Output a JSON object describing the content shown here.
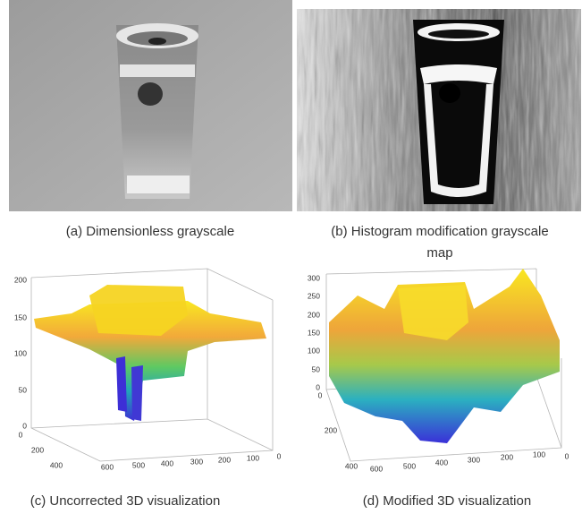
{
  "panels": [
    {
      "caption": "(a) Dimensionless grayscale"
    },
    {
      "caption_lines": [
        "(b) Histogram modification grayscale",
        "map"
      ]
    },
    {
      "caption": "(c) Uncorrected 3D visualization",
      "z_ticks": [
        200,
        150,
        100,
        50,
        0
      ],
      "y_ticks": [
        0,
        200,
        400
      ],
      "x_ticks": [
        600,
        500,
        400,
        300,
        200,
        100,
        0
      ]
    },
    {
      "caption": "(d) Modified 3D visualization",
      "z_ticks": [
        300,
        250,
        200,
        150,
        100,
        50,
        0
      ],
      "y_ticks": [
        0,
        200,
        400
      ],
      "x_ticks": [
        600,
        500,
        400,
        300,
        200,
        100,
        0
      ]
    }
  ]
}
